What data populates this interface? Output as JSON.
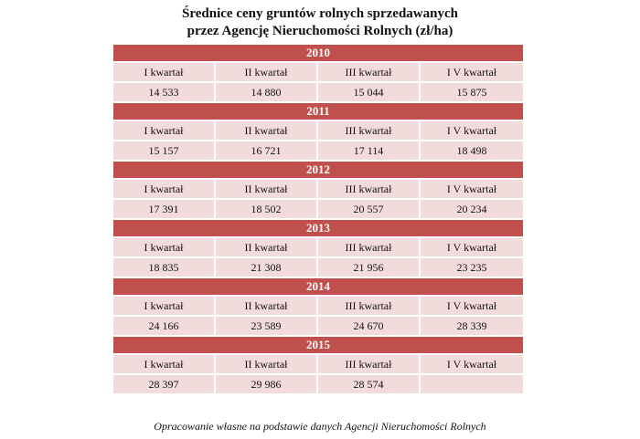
{
  "title_line1": "Średnice ceny gruntów rolnych sprzedawanych",
  "title_line2": "przez Agencję Nieruchomości Rolnych (zł/ha)",
  "quarters": [
    "I kwartał",
    "II kwartał",
    "III kwartał",
    "I V kwartał"
  ],
  "years": [
    {
      "year": "2010",
      "values": [
        "14 533",
        "14 880",
        "15 044",
        "15 875"
      ]
    },
    {
      "year": "2011",
      "values": [
        "15 157",
        "16 721",
        "17 114",
        "18 498"
      ]
    },
    {
      "year": "2012",
      "values": [
        "17 391",
        "18 502",
        "20 557",
        "20 234"
      ]
    },
    {
      "year": "2013",
      "values": [
        "18 835",
        "21 308",
        "21 956",
        "23 235"
      ]
    },
    {
      "year": "2014",
      "values": [
        "24 166",
        "23 589",
        "24 670",
        "28 339"
      ]
    },
    {
      "year": "2015",
      "values": [
        "28 397",
        "29 986",
        "28 574",
        ""
      ]
    }
  ],
  "footnote": "Opracowanie własne na podstawie danych Agencji Nieruchomości Rolnych",
  "colors": {
    "header": "#c0504d",
    "cell": "#f2dcdb"
  }
}
